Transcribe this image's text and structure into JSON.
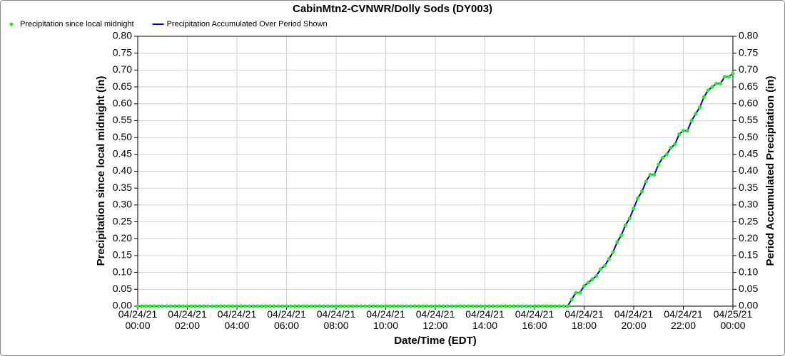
{
  "chart_data": {
    "type": "line",
    "title": "CabinMtn2-CVNWR/Dolly Sods (DY003)",
    "x_label": "Date/Time (EDT)",
    "y_label": "Precipitation since local midnight (in)",
    "y2_label": "Period Accumulated Precipitation (in)",
    "grid": true,
    "x": [
      "04/24/21 00:00",
      "04/24/21 00:10",
      "04/24/21 00:20",
      "04/24/21 00:30",
      "04/24/21 00:40",
      "04/24/21 00:50",
      "04/24/21 01:00",
      "04/24/21 01:10",
      "04/24/21 01:20",
      "04/24/21 01:30",
      "04/24/21 01:40",
      "04/24/21 01:50",
      "04/24/21 02:00",
      "04/24/21 02:10",
      "04/24/21 02:20",
      "04/24/21 02:30",
      "04/24/21 02:40",
      "04/24/21 02:50",
      "04/24/21 03:00",
      "04/24/21 03:10",
      "04/24/21 03:20",
      "04/24/21 03:30",
      "04/24/21 03:40",
      "04/24/21 03:50",
      "04/24/21 04:00",
      "04/24/21 04:10",
      "04/24/21 04:20",
      "04/24/21 04:30",
      "04/24/21 04:40",
      "04/24/21 04:50",
      "04/24/21 05:00",
      "04/24/21 05:10",
      "04/24/21 05:20",
      "04/24/21 05:30",
      "04/24/21 05:40",
      "04/24/21 05:50",
      "04/24/21 06:00",
      "04/24/21 06:10",
      "04/24/21 06:20",
      "04/24/21 06:30",
      "04/24/21 06:40",
      "04/24/21 06:50",
      "04/24/21 07:00",
      "04/24/21 07:10",
      "04/24/21 07:20",
      "04/24/21 07:30",
      "04/24/21 07:40",
      "04/24/21 07:50",
      "04/24/21 08:00",
      "04/24/21 08:10",
      "04/24/21 08:20",
      "04/24/21 08:30",
      "04/24/21 08:40",
      "04/24/21 08:50",
      "04/24/21 09:00",
      "04/24/21 09:10",
      "04/24/21 09:20",
      "04/24/21 09:30",
      "04/24/21 09:40",
      "04/24/21 09:50",
      "04/24/21 10:00",
      "04/24/21 10:10",
      "04/24/21 10:20",
      "04/24/21 10:30",
      "04/24/21 10:40",
      "04/24/21 10:50",
      "04/24/21 11:00",
      "04/24/21 11:10",
      "04/24/21 11:20",
      "04/24/21 11:30",
      "04/24/21 11:40",
      "04/24/21 11:50",
      "04/24/21 12:00",
      "04/24/21 12:10",
      "04/24/21 12:20",
      "04/24/21 12:30",
      "04/24/21 12:40",
      "04/24/21 12:50",
      "04/24/21 13:00",
      "04/24/21 13:10",
      "04/24/21 13:20",
      "04/24/21 13:30",
      "04/24/21 13:40",
      "04/24/21 13:50",
      "04/24/21 14:00",
      "04/24/21 14:10",
      "04/24/21 14:20",
      "04/24/21 14:30",
      "04/24/21 14:40",
      "04/24/21 14:50",
      "04/24/21 15:00",
      "04/24/21 15:10",
      "04/24/21 15:20",
      "04/24/21 15:30",
      "04/24/21 15:40",
      "04/24/21 15:50",
      "04/24/21 16:00",
      "04/24/21 16:10",
      "04/24/21 16:20",
      "04/24/21 16:30",
      "04/24/21 16:40",
      "04/24/21 16:50",
      "04/24/21 17:00",
      "04/24/21 17:10",
      "04/24/21 17:20",
      "04/24/21 17:30",
      "04/24/21 17:40",
      "04/24/21 17:50",
      "04/24/21 18:00",
      "04/24/21 18:10",
      "04/24/21 18:20",
      "04/24/21 18:30",
      "04/24/21 18:40",
      "04/24/21 18:50",
      "04/24/21 19:00",
      "04/24/21 19:10",
      "04/24/21 19:20",
      "04/24/21 19:30",
      "04/24/21 19:40",
      "04/24/21 19:50",
      "04/24/21 20:00",
      "04/24/21 20:10",
      "04/24/21 20:20",
      "04/24/21 20:30",
      "04/24/21 20:40",
      "04/24/21 20:50",
      "04/24/21 21:00",
      "04/24/21 21:10",
      "04/24/21 21:20",
      "04/24/21 21:30",
      "04/24/21 21:40",
      "04/24/21 21:50",
      "04/24/21 22:00",
      "04/24/21 22:10",
      "04/24/21 22:20",
      "04/24/21 22:30",
      "04/24/21 22:40",
      "04/24/21 22:50",
      "04/24/21 23:00",
      "04/24/21 23:10",
      "04/24/21 23:20",
      "04/24/21 23:30",
      "04/24/21 23:40",
      "04/24/21 23:50",
      "04/25/21 00:00"
    ],
    "series": [
      {
        "name": "Precipitation since local midnight",
        "color": "#22ee22",
        "marker": "dot",
        "axis": "y",
        "values": [
          0,
          0,
          0,
          0,
          0,
          0,
          0,
          0,
          0,
          0,
          0,
          0,
          0,
          0,
          0,
          0,
          0,
          0,
          0,
          0,
          0,
          0,
          0,
          0,
          0,
          0,
          0,
          0,
          0,
          0,
          0,
          0,
          0,
          0,
          0,
          0,
          0,
          0,
          0,
          0,
          0,
          0,
          0,
          0,
          0,
          0,
          0,
          0,
          0,
          0,
          0,
          0,
          0,
          0,
          0,
          0,
          0,
          0,
          0,
          0,
          0,
          0,
          0,
          0,
          0,
          0,
          0,
          0,
          0,
          0,
          0,
          0,
          0,
          0,
          0,
          0,
          0,
          0,
          0,
          0,
          0,
          0,
          0,
          0,
          0,
          0,
          0,
          0,
          0,
          0,
          0,
          0,
          0,
          0,
          0,
          0,
          0,
          0,
          0,
          0,
          0,
          0,
          0,
          0,
          0,
          0.02,
          0.04,
          0.04,
          0.06,
          0.07,
          0.08,
          0.09,
          0.11,
          0.12,
          0.14,
          0.16,
          0.19,
          0.21,
          0.24,
          0.26,
          0.29,
          0.32,
          0.34,
          0.37,
          0.39,
          0.39,
          0.42,
          0.44,
          0.45,
          0.47,
          0.48,
          0.51,
          0.52,
          0.52,
          0.55,
          0.57,
          0.59,
          0.62,
          0.64,
          0.65,
          0.66,
          0.66,
          0.68,
          0.68,
          0.69
        ]
      },
      {
        "name": "Precipitation Accumulated Over Period Shown",
        "color": "#0000cc",
        "marker": "line",
        "axis": "y2",
        "values": [
          0,
          0,
          0,
          0,
          0,
          0,
          0,
          0,
          0,
          0,
          0,
          0,
          0,
          0,
          0,
          0,
          0,
          0,
          0,
          0,
          0,
          0,
          0,
          0,
          0,
          0,
          0,
          0,
          0,
          0,
          0,
          0,
          0,
          0,
          0,
          0,
          0,
          0,
          0,
          0,
          0,
          0,
          0,
          0,
          0,
          0,
          0,
          0,
          0,
          0,
          0,
          0,
          0,
          0,
          0,
          0,
          0,
          0,
          0,
          0,
          0,
          0,
          0,
          0,
          0,
          0,
          0,
          0,
          0,
          0,
          0,
          0,
          0,
          0,
          0,
          0,
          0,
          0,
          0,
          0,
          0,
          0,
          0,
          0,
          0,
          0,
          0,
          0,
          0,
          0,
          0,
          0,
          0,
          0,
          0,
          0,
          0,
          0,
          0,
          0,
          0,
          0,
          0,
          0,
          0,
          0.02,
          0.04,
          0.04,
          0.06,
          0.07,
          0.08,
          0.09,
          0.11,
          0.12,
          0.14,
          0.16,
          0.19,
          0.21,
          0.24,
          0.26,
          0.29,
          0.32,
          0.34,
          0.37,
          0.39,
          0.39,
          0.42,
          0.44,
          0.45,
          0.47,
          0.48,
          0.51,
          0.52,
          0.52,
          0.55,
          0.57,
          0.59,
          0.62,
          0.64,
          0.65,
          0.66,
          0.66,
          0.68,
          0.68,
          0.69
        ]
      }
    ],
    "xlim": [
      "04/24/21 00:00",
      "04/25/21 00:00"
    ],
    "xticks": [
      "04/24/21 00:00",
      "04/24/21 02:00",
      "04/24/21 04:00",
      "04/24/21 06:00",
      "04/24/21 08:00",
      "04/24/21 10:00",
      "04/24/21 12:00",
      "04/24/21 14:00",
      "04/24/21 16:00",
      "04/24/21 18:00",
      "04/24/21 20:00",
      "04/24/21 22:00",
      "04/25/21 00:00"
    ],
    "ylim": [
      0,
      0.8
    ],
    "yticks": [
      {
        "value": 0,
        "label": "0.00"
      },
      {
        "value": 0.05,
        "label": "0.05"
      },
      {
        "value": 0.1,
        "label": "0.10"
      },
      {
        "value": 0.15,
        "label": "0.15"
      },
      {
        "value": 0.2,
        "label": "0.20"
      },
      {
        "value": 0.25,
        "label": "0.25"
      },
      {
        "value": 0.3,
        "label": "0.30"
      },
      {
        "value": 0.35,
        "label": "0.35"
      },
      {
        "value": 0.4,
        "label": "0.40"
      },
      {
        "value": 0.45,
        "label": "0.45"
      },
      {
        "value": 0.5,
        "label": "0.50"
      },
      {
        "value": 0.55,
        "label": "0.55"
      },
      {
        "value": 0.6,
        "label": "0.60"
      },
      {
        "value": 0.65,
        "label": "0.65"
      },
      {
        "value": 0.7,
        "label": "0.70"
      },
      {
        "value": 0.75,
        "label": "0.75"
      },
      {
        "value": 0.8,
        "label": "0.80"
      }
    ],
    "y2lim": [
      0,
      0.8
    ],
    "y2ticks": [
      {
        "value": 0,
        "label": "0.00"
      },
      {
        "value": 0.05,
        "label": "0.05"
      },
      {
        "value": 0.1,
        "label": "0.10"
      },
      {
        "value": 0.15,
        "label": "0.15"
      },
      {
        "value": 0.2,
        "label": "0.20"
      },
      {
        "value": 0.25,
        "label": "0.25"
      },
      {
        "value": 0.3,
        "label": "0.30"
      },
      {
        "value": 0.35,
        "label": "0.35"
      },
      {
        "value": 0.4,
        "label": "0.40"
      },
      {
        "value": 0.45,
        "label": "0.45"
      },
      {
        "value": 0.5,
        "label": "0.50"
      },
      {
        "value": 0.55,
        "label": "0.55"
      },
      {
        "value": 0.6,
        "label": "0.60"
      },
      {
        "value": 0.65,
        "label": "0.65"
      },
      {
        "value": 0.7,
        "label": "0.70"
      },
      {
        "value": 0.75,
        "label": "0.75"
      },
      {
        "value": 0.8,
        "label": "0.80"
      }
    ]
  }
}
